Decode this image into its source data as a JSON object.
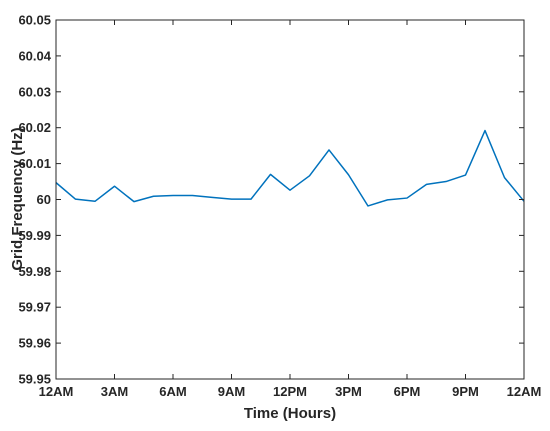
{
  "chart_data": {
    "type": "line",
    "title": "",
    "xlabel": "Time (Hours)",
    "ylabel": "Grid Frequency (Hz)",
    "xlim": [
      0,
      24
    ],
    "ylim": [
      59.95,
      60.05
    ],
    "x_ticks": [
      0,
      3,
      6,
      9,
      12,
      15,
      18,
      21,
      24
    ],
    "x_tick_labels": [
      "12AM",
      "3AM",
      "6AM",
      "9AM",
      "12PM",
      "3PM",
      "6PM",
      "9PM",
      "12AM"
    ],
    "y_ticks": [
      59.95,
      59.96,
      59.97,
      59.98,
      59.99,
      60.0,
      60.01,
      60.02,
      60.03,
      60.04,
      60.05
    ],
    "y_tick_labels": [
      "59.95",
      "59.96",
      "59.97",
      "59.98",
      "59.99",
      "60",
      "60.01",
      "60.02",
      "60.03",
      "60.04",
      "60.05"
    ],
    "grid": false,
    "series": [
      {
        "color": "#0072BD",
        "x": [
          0,
          1,
          2,
          3,
          4,
          5,
          6,
          7,
          8,
          9,
          10,
          11,
          12,
          13,
          14,
          15,
          16,
          17,
          18,
          19,
          20,
          21,
          22,
          23,
          24
        ],
        "y": [
          60.0047,
          60.0001,
          59.9995,
          60.0037,
          59.9994,
          60.0009,
          60.0011,
          60.0011,
          60.0006,
          60.0001,
          60.0001,
          60.007,
          60.0026,
          60.0066,
          60.0138,
          60.0069,
          59.9982,
          59.9999,
          60.0004,
          60.0042,
          60.005,
          60.0068,
          60.0192,
          60.0061,
          59.9995
        ]
      }
    ]
  }
}
